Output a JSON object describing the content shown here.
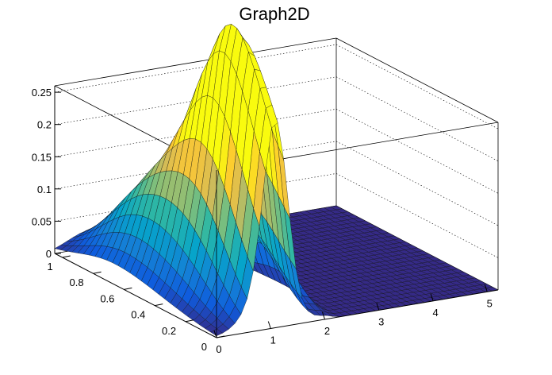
{
  "chart_data": {
    "type": "surface",
    "title": "Graph2D",
    "x": {
      "range": [
        0,
        5.2
      ],
      "ticks": [
        {
          "v": 0,
          "label": "0"
        },
        {
          "v": 1,
          "label": "1"
        },
        {
          "v": 2,
          "label": "2"
        },
        {
          "v": 3,
          "label": "3"
        },
        {
          "v": 4,
          "label": "4"
        },
        {
          "v": 5,
          "label": "5"
        }
      ]
    },
    "y": {
      "range": [
        0,
        1.05
      ],
      "ticks": [
        {
          "v": 0,
          "label": "0"
        },
        {
          "v": 0.2,
          "label": "0.2"
        },
        {
          "v": 0.4,
          "label": "0.4"
        },
        {
          "v": 0.6,
          "label": "0.6"
        },
        {
          "v": 0.8,
          "label": "0.8"
        },
        {
          "v": 1,
          "label": "1"
        }
      ]
    },
    "z": {
      "range": [
        0,
        0.26
      ],
      "ticks": [
        {
          "v": 0,
          "label": "0"
        },
        {
          "v": 0.05,
          "label": "0.05"
        },
        {
          "v": 0.1,
          "label": "0.1"
        },
        {
          "v": 0.15,
          "label": "0.15"
        },
        {
          "v": 0.2,
          "label": "0.2"
        },
        {
          "v": 0.25,
          "label": "0.25"
        }
      ]
    },
    "grid": true,
    "palette": [
      "#352a87",
      "#0f5cdd",
      "#1481d6",
      "#06a4ca",
      "#2eb7a4",
      "#87bf77",
      "#d1bb59",
      "#fec832",
      "#f9fb0e"
    ],
    "surface_peaks": [
      {
        "x": 1.1,
        "y": 0.02,
        "z": 0.255,
        "sx": 0.22,
        "sy": 0.3
      },
      {
        "x": 1.0,
        "y": 0.28,
        "z": 0.2,
        "sx": 0.3,
        "sy": 0.18
      },
      {
        "x": 0.7,
        "y": 0.5,
        "z": 0.14,
        "sx": 0.35,
        "sy": 0.25
      },
      {
        "x": 0.5,
        "y": 0.75,
        "z": 0.04,
        "sx": 0.4,
        "sy": 0.2
      },
      {
        "x": 1.9,
        "y": 0.35,
        "z": 0.06,
        "sx": 0.35,
        "sy": 0.15
      },
      {
        "x": 1.6,
        "y": 0.7,
        "z": 0.04,
        "sx": 0.5,
        "sy": 0.3
      }
    ]
  }
}
